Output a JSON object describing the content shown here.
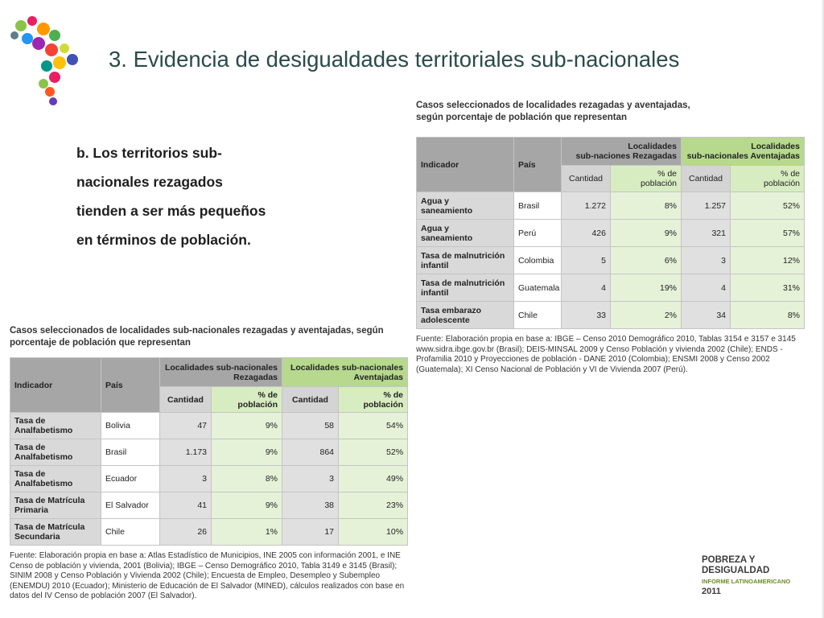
{
  "header": {
    "title": "3. Evidencia de desigualdades territoriales sub-nacionales"
  },
  "bullet": {
    "lines": [
      "b. Los territorios sub-",
      "nacionales rezagados",
      "tienden a ser más pequeños",
      "en términos de población."
    ]
  },
  "table_right": {
    "caption": [
      "Casos seleccionados de localidades rezagadas y aventajadas,",
      "según porcentaje de población que representan"
    ],
    "headers": {
      "indicator": "Indicador",
      "country": "País",
      "group_1": "Localidades\nsub-naciones Rezagadas",
      "group_2": "Localidades\nsub-nacionales Aventajadas",
      "sub": [
        "Cantidad",
        "% de\npoblación",
        "Cantidad",
        "% de\npoblación"
      ]
    },
    "rows": [
      [
        "Agua y\nsaneamiento",
        "Brasil",
        "1.272",
        "8%",
        "1.257",
        "52%"
      ],
      [
        "Agua y\nsaneamiento",
        "Perú",
        "426",
        "9%",
        "321",
        "57%"
      ],
      [
        "Tasa de malnutrición\ninfantil",
        "Colombia",
        "5",
        "6%",
        "3",
        "12%"
      ],
      [
        "Tasa de malnutrición\ninfantil",
        "Guatemala",
        "4",
        "19%",
        "4",
        "31%"
      ],
      [
        "Tasa embarazo\nadolescente",
        "Chile",
        "33",
        "2%",
        "34",
        "8%"
      ]
    ],
    "source": "Fuente: Elaboración propia en base a: IBGE – Censo 2010 Demográfico 2010, Tablas 3154 e 3157 e 3145 www.sidra.ibge.gov.br (Brasil); DEIS-MINSAL 2009 y Censo Población y vivienda 2002 (Chile); ENDS - Profamilia 2010 y Proyecciones de población - DANE 2010 (Colombia); ENSMI 2008 y Censo 2002 (Guatemala); XI Censo Nacional de Población y VI de Vivienda 2007 (Perú)."
  },
  "table_left": {
    "caption": [
      "Casos seleccionados de localidades sub-nacionales rezagadas y aventajadas, según",
      "porcentaje de población que representan"
    ],
    "headers": {
      "indicator": "Indicador",
      "country": "País",
      "group_1": "Localidades sub-nacionales\nRezagadas",
      "group_2": "Localidades sub-nacionales\nAventajadas",
      "sub": [
        "Cantidad",
        "% de\npoblación",
        "Cantidad",
        "% de\npoblación"
      ]
    },
    "rows": [
      [
        "Tasa de\nAnalfabetismo",
        "Bolivia",
        "47",
        "9%",
        "58",
        "54%"
      ],
      [
        "Tasa de\nAnalfabetismo",
        "Brasil",
        "1.173",
        "9%",
        "864",
        "52%"
      ],
      [
        "Tasa de\nAnalfabetismo",
        "Ecuador",
        "3",
        "8%",
        "3",
        "49%"
      ],
      [
        "Tasa de Matrícula\nPrimaria",
        "El Salvador",
        "41",
        "9%",
        "38",
        "23%"
      ],
      [
        "Tasa de Matrícula\nSecundaria",
        "Chile",
        "26",
        "1%",
        "17",
        "10%"
      ]
    ],
    "source": "Fuente: Elaboración propia en base a: Atlas Estadístico de Municipios, INE 2005 con información 2001, e INE Censo de población y vivienda, 2001 (Bolivia); IBGE – Censo Demográfico 2010, Tabla 3149 e 3145 (Brasil); SINIM 2008 y Censo Población y Vivienda 2002 (Chile); Encuesta de Empleo, Desempleo y Subempleo (ENEMDU) 2010 (Ecuador); Ministerio de Educación de El Salvador (MINED), cálculos realizados con base en datos del IV Censo de población 2007 (El Salvador)."
  },
  "logo": {
    "lines": [
      "POBREZA Y",
      "DESIGUALDAD",
      "INFORME LATINOAMERICANO",
      "2011"
    ]
  }
}
